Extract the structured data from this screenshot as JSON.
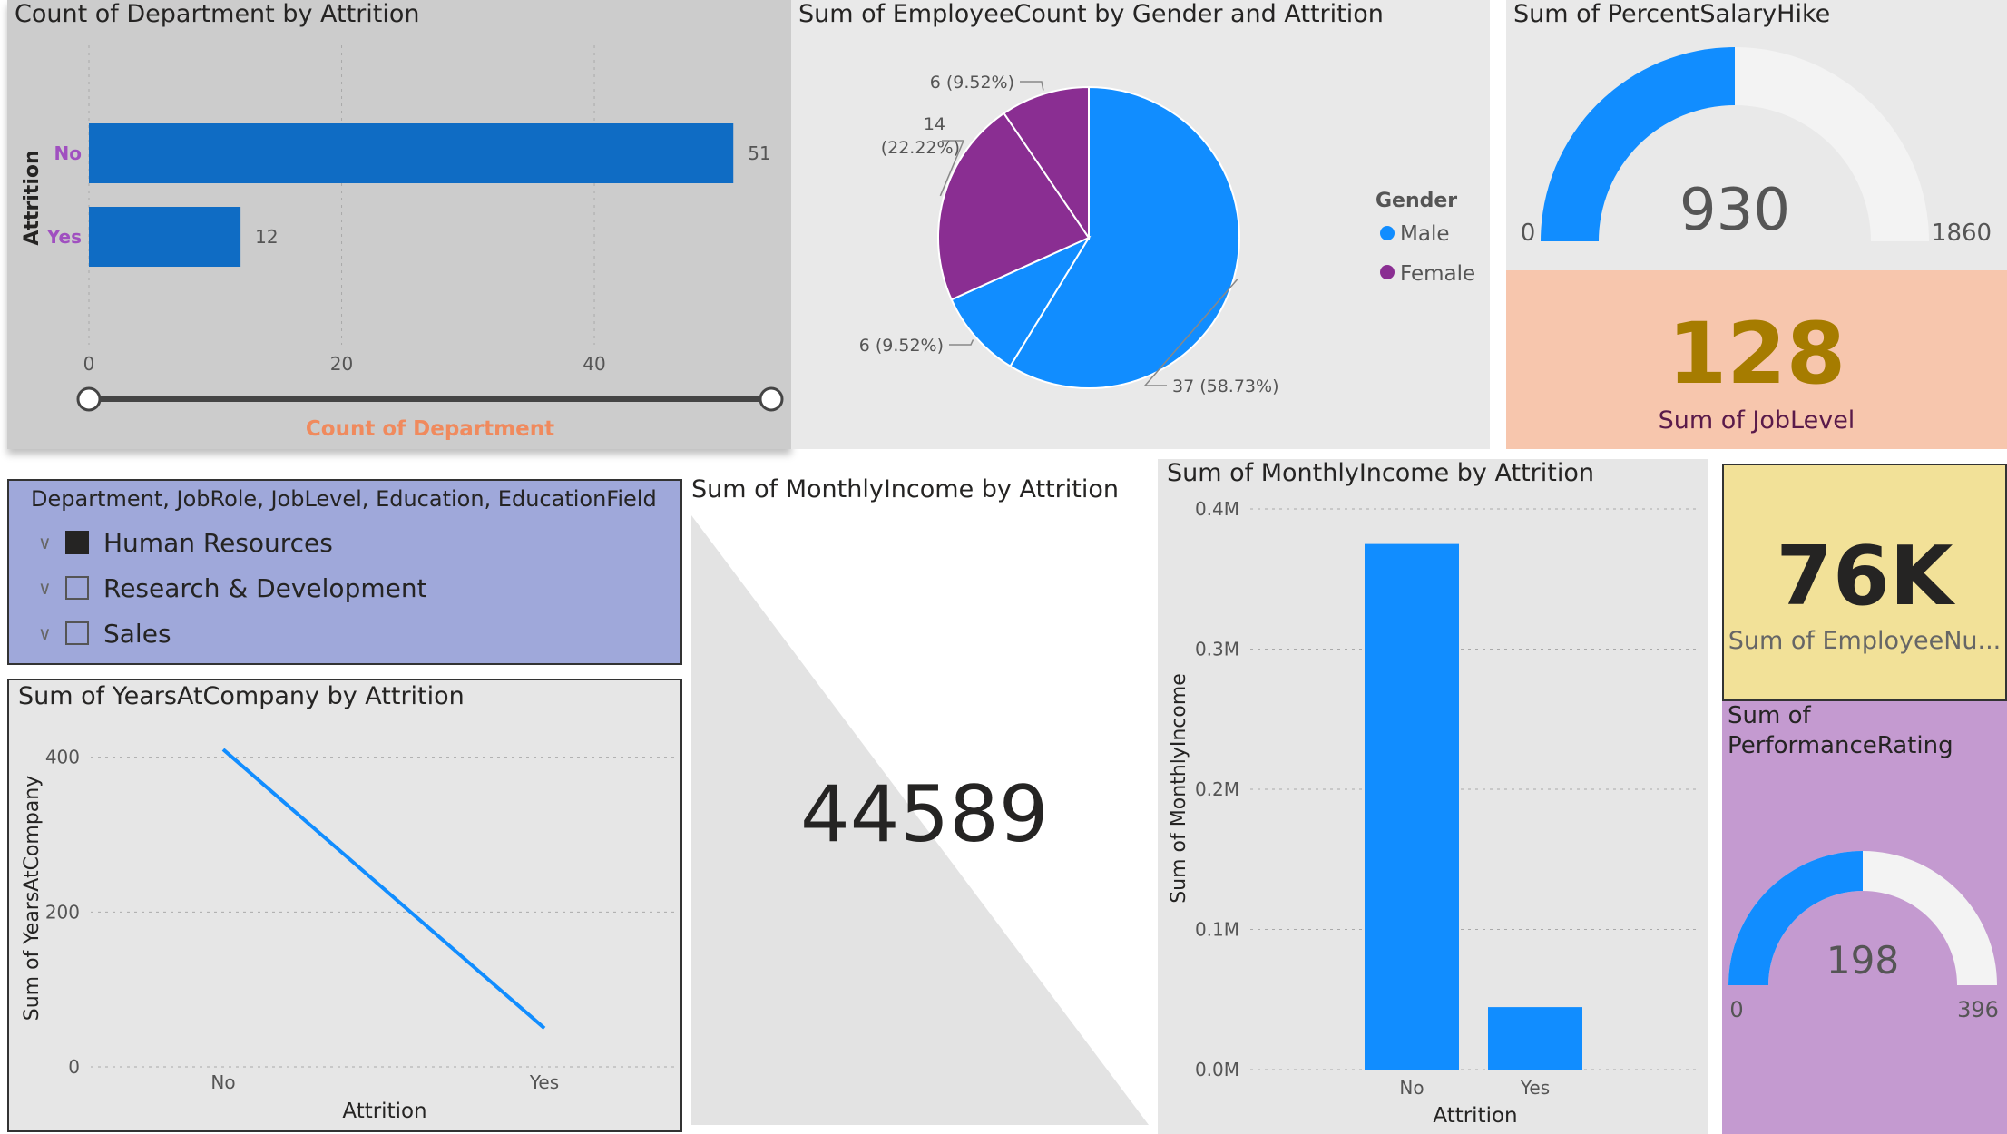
{
  "dept_attr": {
    "title": "Count of Department by Attrition",
    "ylabel": "Attrition",
    "xlabel": "Count of Department",
    "chart_data": {
      "type": "bar",
      "orientation": "horizontal",
      "categories": [
        "No",
        "Yes"
      ],
      "values": [
        51,
        12
      ],
      "xlim": [
        0,
        54
      ],
      "ticks": [
        "0",
        "20",
        "40"
      ],
      "tick_values": [
        0,
        20,
        40
      ],
      "data_labels": [
        "51",
        "12"
      ]
    }
  },
  "gender_pie": {
    "title": "Sum of EmployeeCount by Gender and Attrition",
    "legend_title": "Gender",
    "legend": [
      "Male",
      "Female"
    ],
    "chart_data": {
      "type": "pie",
      "slices": [
        {
          "label": "37 (58.73%)",
          "value": 37,
          "color": "#118dff"
        },
        {
          "label": "6 (9.52%)",
          "value": 6,
          "color": "#118dff"
        },
        {
          "label": "14 (22.22%)",
          "value": 14,
          "color": "#8a2e92"
        },
        {
          "label": "6 (9.52%)",
          "value": 6,
          "color": "#8a2e92"
        }
      ]
    }
  },
  "salary_gauge": {
    "title": "Sum of PercentSalaryHike",
    "value": "930",
    "min": "0",
    "max": "1860",
    "fraction": 0.5
  },
  "joblevel_card": {
    "value": "128",
    "label": "Sum of JobLevel"
  },
  "slicer": {
    "header": "Department, JobRole, JobLevel, Education, EducationField",
    "items": [
      {
        "label": "Human Resources",
        "checked": true
      },
      {
        "label": "Research & Development",
        "checked": false
      },
      {
        "label": "Sales",
        "checked": false
      }
    ]
  },
  "income_card": {
    "title": "Sum of MonthlyIncome by Attrition",
    "value": "44589"
  },
  "income_bar": {
    "title": "Sum of MonthlyIncome by Attrition",
    "ylabel": "Sum of MonthlyIncome",
    "xlabel": "Attrition",
    "chart_data": {
      "type": "bar",
      "categories": [
        "No",
        "Yes"
      ],
      "values": [
        375000,
        44589
      ],
      "ylim": [
        0,
        400000
      ],
      "ticks": [
        "0.0M",
        "0.1M",
        "0.2M",
        "0.3M",
        "0.4M"
      ],
      "tick_values": [
        0,
        100000,
        200000,
        300000,
        400000
      ]
    }
  },
  "empnum_card": {
    "value": "76K",
    "label": "Sum of EmployeeNu..."
  },
  "perf_gauge": {
    "title": "Sum of PerformanceRating",
    "value": "198",
    "min": "0",
    "max": "396",
    "fraction": 0.5
  },
  "years_line": {
    "title": "Sum of YearsAtCompany by Attrition",
    "ylabel": "Sum of YearsAtCompany",
    "xlabel": "Attrition",
    "chart_data": {
      "type": "line",
      "categories": [
        "No",
        "Yes"
      ],
      "values": [
        410,
        50
      ],
      "ylim": [
        0,
        450
      ],
      "ticks": [
        "0",
        "200",
        "400"
      ],
      "tick_values": [
        0,
        200,
        400
      ]
    }
  },
  "colors": {
    "blue": "#118dff",
    "darkblue": "#0f6cc4",
    "purple": "#8a2e92",
    "gold": "#a67c00"
  }
}
